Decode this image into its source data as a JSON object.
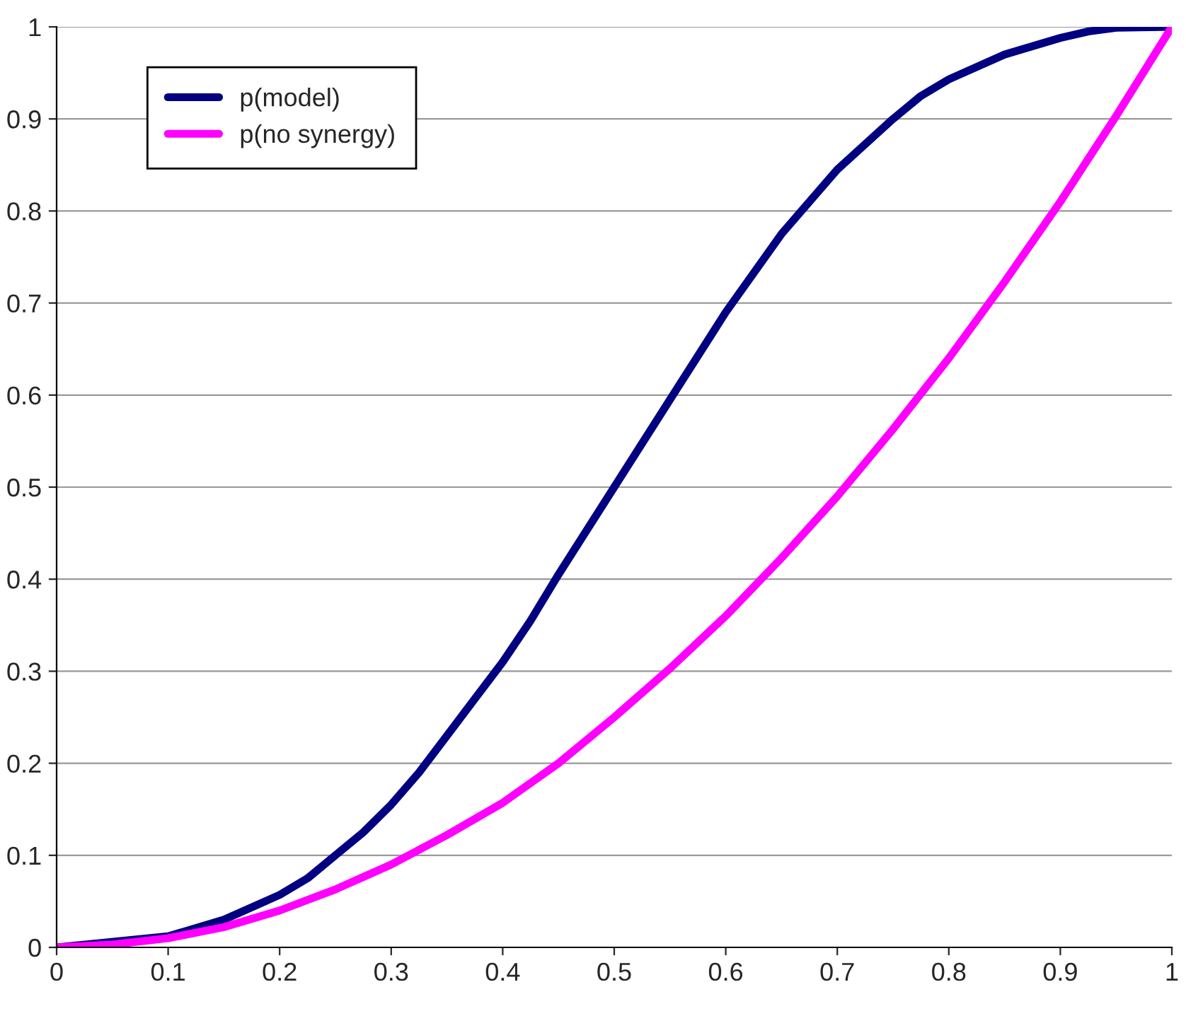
{
  "chart_data": {
    "type": "line",
    "series": [
      {
        "name": "p(model)",
        "color": "#000080",
        "x": [
          0,
          0.1,
          0.15,
          0.2,
          0.225,
          0.25,
          0.275,
          0.3,
          0.325,
          0.35,
          0.375,
          0.4,
          0.425,
          0.45,
          0.5,
          0.55,
          0.6,
          0.65,
          0.7,
          0.75,
          0.775,
          0.8,
          0.85,
          0.9,
          0.925,
          0.95,
          1
        ],
        "values": [
          0,
          0.012,
          0.03,
          0.057,
          0.075,
          0.1,
          0.125,
          0.155,
          0.19,
          0.23,
          0.27,
          0.31,
          0.355,
          0.405,
          0.5,
          0.595,
          0.69,
          0.775,
          0.845,
          0.9,
          0.925,
          0.943,
          0.97,
          0.988,
          0.995,
          0.999,
          1
        ]
      },
      {
        "name": "p(no synergy)",
        "color": "#ff00ff",
        "x": [
          0,
          0.05,
          0.1,
          0.15,
          0.2,
          0.25,
          0.3,
          0.35,
          0.4,
          0.45,
          0.5,
          0.55,
          0.6,
          0.65,
          0.7,
          0.75,
          0.8,
          0.85,
          0.9,
          0.95,
          1
        ],
        "values": [
          0,
          0.003,
          0.01,
          0.022,
          0.04,
          0.063,
          0.09,
          0.122,
          0.157,
          0.2,
          0.25,
          0.303,
          0.36,
          0.423,
          0.49,
          0.563,
          0.64,
          0.723,
          0.81,
          0.903,
          1
        ]
      }
    ],
    "xlim": [
      0,
      1
    ],
    "ylim": [
      0,
      1
    ],
    "xticks": [
      0,
      0.1,
      0.2,
      0.3,
      0.4,
      0.5,
      0.6,
      0.7,
      0.8,
      0.9,
      1
    ],
    "yticks": [
      0,
      0.1,
      0.2,
      0.3,
      0.4,
      0.5,
      0.6,
      0.7,
      0.8,
      0.9,
      1
    ],
    "grid": "y",
    "legend": "top left",
    "line_style": "solid"
  }
}
